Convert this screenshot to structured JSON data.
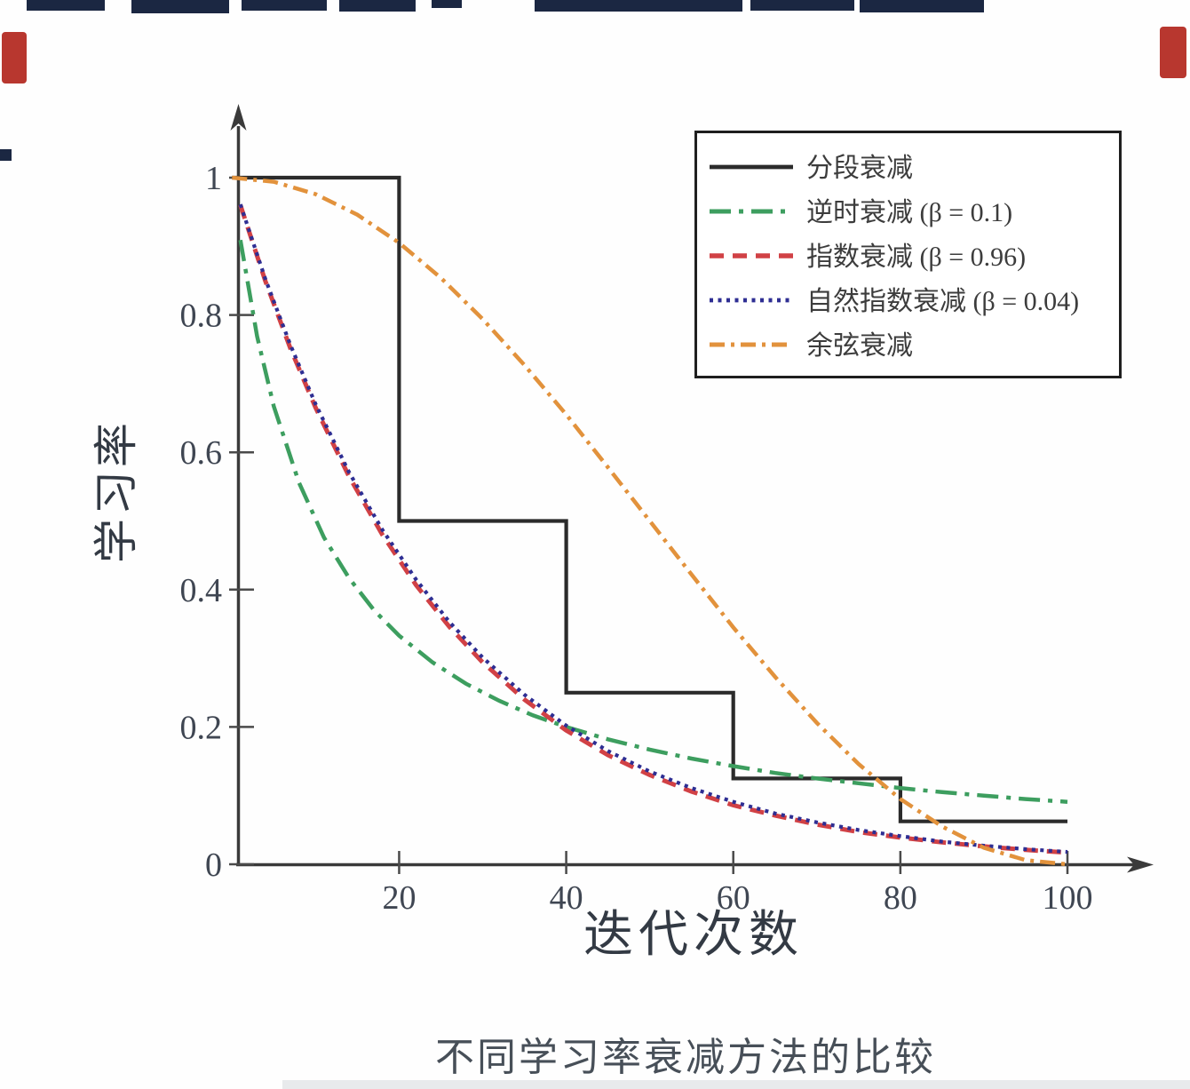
{
  "chart_data": {
    "type": "line",
    "title": "",
    "caption": "不同学习率衰减方法的比较",
    "xlabel": "迭代次数",
    "ylabel": "学习率",
    "xlim": [
      0,
      100
    ],
    "ylim": [
      0,
      1
    ],
    "grid": false,
    "legend_position": "upper right",
    "x_ticks": [
      20,
      40,
      60,
      80,
      100
    ],
    "x_tick_labels": [
      "20",
      "40",
      "60",
      "80",
      "100"
    ],
    "y_ticks": [
      0,
      0.2,
      0.4,
      0.6,
      0.8,
      1
    ],
    "y_tick_labels": [
      "0",
      "0.2",
      "0.4",
      "0.6",
      "0.8",
      "1"
    ],
    "axis_color": "#3a3a3a",
    "series": [
      {
        "name": "piecewise-decay",
        "label": "分段衰减",
        "color": "#2b2b2b",
        "dash": "",
        "width": 4.2,
        "points": [
          [
            0,
            1
          ],
          [
            20,
            1
          ],
          [
            20,
            0.5
          ],
          [
            40,
            0.5
          ],
          [
            40,
            0.25
          ],
          [
            60,
            0.25
          ],
          [
            60,
            0.125
          ],
          [
            80,
            0.125
          ],
          [
            80,
            0.0625
          ],
          [
            100,
            0.0625
          ]
        ]
      },
      {
        "name": "inverse-time-decay",
        "label": "逆时衰减 (β = 0.1)",
        "color": "#3d9e5f",
        "dash": "24 9 5 9",
        "width": 4.5,
        "points": [
          [
            1,
            0.909
          ],
          [
            3,
            0.769
          ],
          [
            5,
            0.667
          ],
          [
            8,
            0.556
          ],
          [
            11,
            0.476
          ],
          [
            14,
            0.417
          ],
          [
            17,
            0.37
          ],
          [
            20,
            0.333
          ],
          [
            24,
            0.294
          ],
          [
            28,
            0.263
          ],
          [
            32,
            0.238
          ],
          [
            36,
            0.217
          ],
          [
            40,
            0.2
          ],
          [
            45,
            0.182
          ],
          [
            50,
            0.167
          ],
          [
            55,
            0.154
          ],
          [
            60,
            0.143
          ],
          [
            65,
            0.133
          ],
          [
            70,
            0.125
          ],
          [
            75,
            0.118
          ],
          [
            80,
            0.111
          ],
          [
            85,
            0.105
          ],
          [
            90,
            0.1
          ],
          [
            95,
            0.095
          ],
          [
            100,
            0.091
          ]
        ]
      },
      {
        "name": "exponential-decay",
        "label": "指数衰减 (β = 0.96)",
        "color": "#d14145",
        "dash": "16 10",
        "width": 5,
        "points": [
          [
            1,
            0.96
          ],
          [
            4,
            0.849
          ],
          [
            7,
            0.751
          ],
          [
            10,
            0.665
          ],
          [
            14,
            0.565
          ],
          [
            18,
            0.48
          ],
          [
            22,
            0.407
          ],
          [
            26,
            0.346
          ],
          [
            30,
            0.294
          ],
          [
            35,
            0.24
          ],
          [
            40,
            0.195
          ],
          [
            45,
            0.159
          ],
          [
            50,
            0.13
          ],
          [
            55,
            0.106
          ],
          [
            60,
            0.086
          ],
          [
            65,
            0.071
          ],
          [
            70,
            0.058
          ],
          [
            75,
            0.047
          ],
          [
            80,
            0.039
          ],
          [
            85,
            0.032
          ],
          [
            90,
            0.026
          ],
          [
            95,
            0.021
          ],
          [
            100,
            0.017
          ]
        ]
      },
      {
        "name": "natural-exponential-decay",
        "label": "自然指数衰减 (β = 0.04)",
        "color": "#2e2e93",
        "dash": "4 5.5",
        "width": 4.2,
        "points": [
          [
            1,
            0.961
          ],
          [
            4,
            0.852
          ],
          [
            7,
            0.756
          ],
          [
            10,
            0.67
          ],
          [
            14,
            0.571
          ],
          [
            18,
            0.487
          ],
          [
            22,
            0.415
          ],
          [
            26,
            0.353
          ],
          [
            30,
            0.301
          ],
          [
            35,
            0.247
          ],
          [
            40,
            0.202
          ],
          [
            45,
            0.165
          ],
          [
            50,
            0.135
          ],
          [
            55,
            0.111
          ],
          [
            60,
            0.091
          ],
          [
            65,
            0.074
          ],
          [
            70,
            0.061
          ],
          [
            75,
            0.05
          ],
          [
            80,
            0.041
          ],
          [
            85,
            0.033
          ],
          [
            90,
            0.027
          ],
          [
            95,
            0.022
          ],
          [
            100,
            0.018
          ]
        ]
      },
      {
        "name": "cosine-decay",
        "label": "余弦衰减",
        "color": "#e2923c",
        "dash": "17 7 4 7",
        "width": 4.5,
        "points": [
          [
            0,
            1
          ],
          [
            5,
            0.994
          ],
          [
            10,
            0.976
          ],
          [
            15,
            0.946
          ],
          [
            20,
            0.905
          ],
          [
            25,
            0.854
          ],
          [
            30,
            0.794
          ],
          [
            35,
            0.727
          ],
          [
            40,
            0.655
          ],
          [
            45,
            0.578
          ],
          [
            50,
            0.5
          ],
          [
            55,
            0.422
          ],
          [
            60,
            0.345
          ],
          [
            65,
            0.273
          ],
          [
            70,
            0.206
          ],
          [
            75,
            0.146
          ],
          [
            80,
            0.095
          ],
          [
            85,
            0.055
          ],
          [
            90,
            0.024
          ],
          [
            95,
            0.006
          ],
          [
            100,
            0
          ]
        ]
      }
    ]
  }
}
